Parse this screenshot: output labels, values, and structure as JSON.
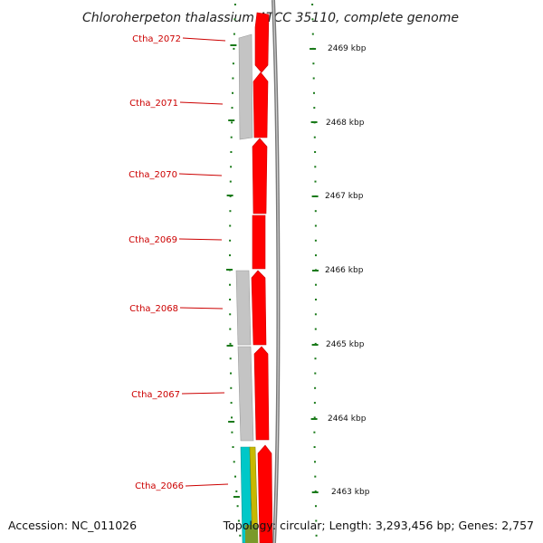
{
  "title": "Chloroherpeton thalassium ATCC 35110, complete genome",
  "accession": "Accession: NC_011026",
  "topology": "Topology: circular; Length: 3,293,456 bp; Genes: 2,757",
  "colors": {
    "gene_label": "#cc0000",
    "gene_red": "#ff0000",
    "gene_gray": "#c0c0c0",
    "gene_cyan": "#00c0c0",
    "gene_olive": "#8a9a3a",
    "tick": "#1a7a1a",
    "backbone": "#888888"
  },
  "genes": [
    {
      "label": "Ctha_2072"
    },
    {
      "label": "Ctha_2071"
    },
    {
      "label": "Ctha_2070"
    },
    {
      "label": "Ctha_2069"
    },
    {
      "label": "Ctha_2068"
    },
    {
      "label": "Ctha_2067"
    },
    {
      "label": "Ctha_2066"
    }
  ],
  "scale_labels": [
    {
      "label": "2469 kbp"
    },
    {
      "label": "2468 kbp"
    },
    {
      "label": "2467 kbp"
    },
    {
      "label": "2466 kbp"
    },
    {
      "label": "2465 kbp"
    },
    {
      "label": "2464 kbp"
    },
    {
      "label": "2463 kbp"
    }
  ]
}
